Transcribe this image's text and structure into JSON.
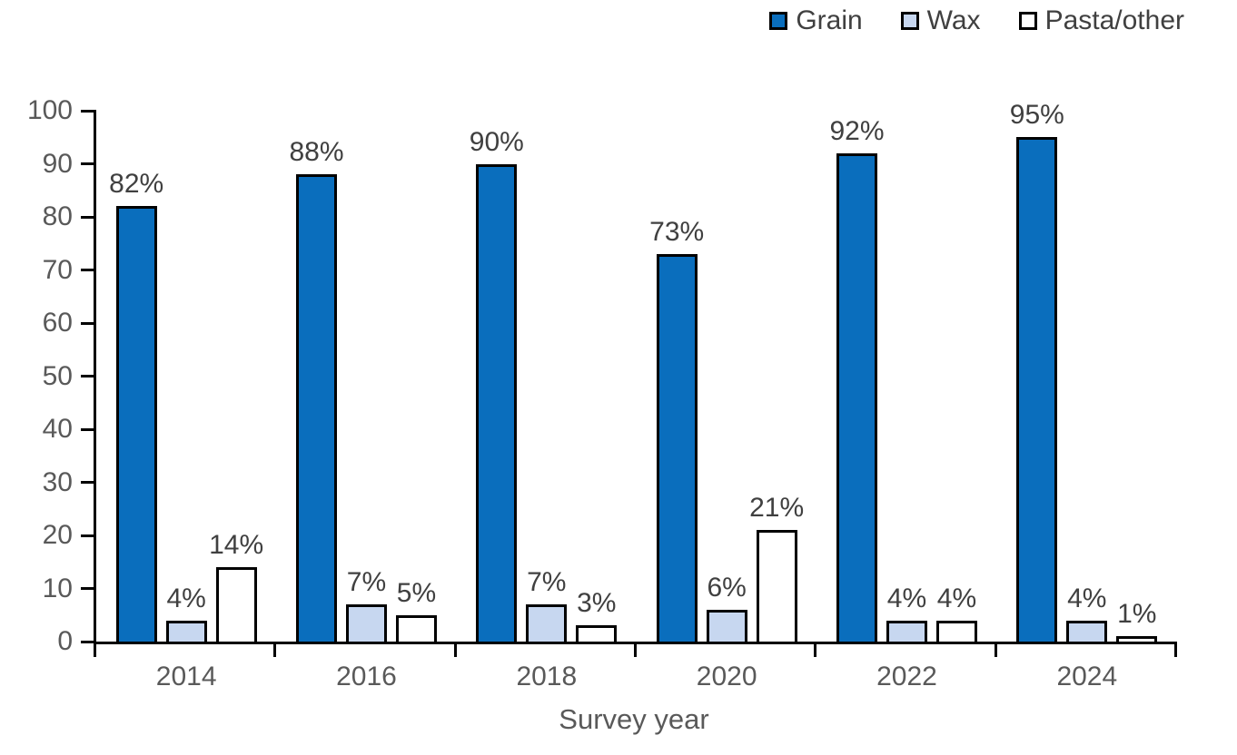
{
  "chart_data": {
    "type": "bar",
    "title": "",
    "xlabel": "Survey year",
    "ylabel": "",
    "ylim": [
      0,
      100
    ],
    "ytick_step": 10,
    "grid": false,
    "legend_position": "top-right",
    "categories": [
      "2014",
      "2016",
      "2018",
      "2020",
      "2022",
      "2024"
    ],
    "series": [
      {
        "name": "Grain",
        "color": "#0A6EBD",
        "values": [
          82,
          88,
          90,
          73,
          92,
          95
        ]
      },
      {
        "name": "Wax",
        "color": "#C7D7F0",
        "values": [
          4,
          7,
          7,
          6,
          4,
          4
        ]
      },
      {
        "name": "Pasta/other",
        "color": "#FFFFFF",
        "values": [
          14,
          5,
          3,
          21,
          4,
          1
        ]
      }
    ],
    "data_label_format": "{v}%",
    "colors": {
      "axis": "#000000",
      "bar_border": "#000000",
      "tick_label": "#595959",
      "data_label": "#404040",
      "legend_text": "#404040"
    }
  }
}
